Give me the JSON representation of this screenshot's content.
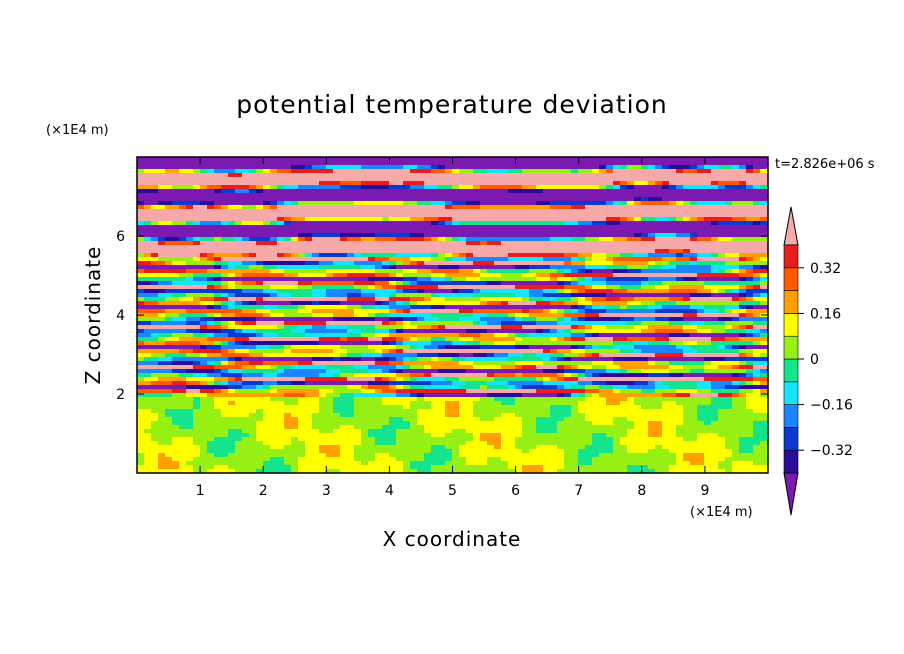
{
  "chart_data": {
    "type": "heatmap",
    "title": "potential temperature deviation",
    "xlabel": "X coordinate",
    "ylabel": "Z coordinate",
    "x_unit_label": "(×1E4 m)",
    "y_unit_label": "(×1E4 m)",
    "time_label": "t=2.826e+06 s",
    "xlim": [
      0,
      10
    ],
    "ylim": [
      0,
      8
    ],
    "x_ticks": [
      1,
      2,
      3,
      4,
      5,
      6,
      7,
      8,
      9
    ],
    "y_ticks": [
      2,
      4,
      6
    ],
    "colorbar": {
      "levels": [
        -0.4,
        -0.32,
        -0.24,
        -0.16,
        -0.08,
        0,
        0.08,
        0.16,
        0.24,
        0.32,
        0.4
      ],
      "tick_labels": [
        "0.32",
        "0.16",
        "0",
        "−0.16",
        "−0.32"
      ],
      "tick_values": [
        0.32,
        0.16,
        0,
        -0.16,
        -0.32
      ],
      "colors": [
        "#7a1ab0",
        "#2a0b9a",
        "#0a3ad0",
        "#1a86ff",
        "#14e4ff",
        "#14e48c",
        "#96f014",
        "#ffff00",
        "#ffa000",
        "#ff5a00",
        "#e81e1e",
        "#f5a9a9"
      ],
      "extend": "both"
    },
    "bands_note": "layered field: z<2 mostly 0 to 0.16 with patches; z 2–5.5 strongly mixed layers; z>5.5 alternating pink (>0.4) and purple (<-0.4) strata"
  }
}
